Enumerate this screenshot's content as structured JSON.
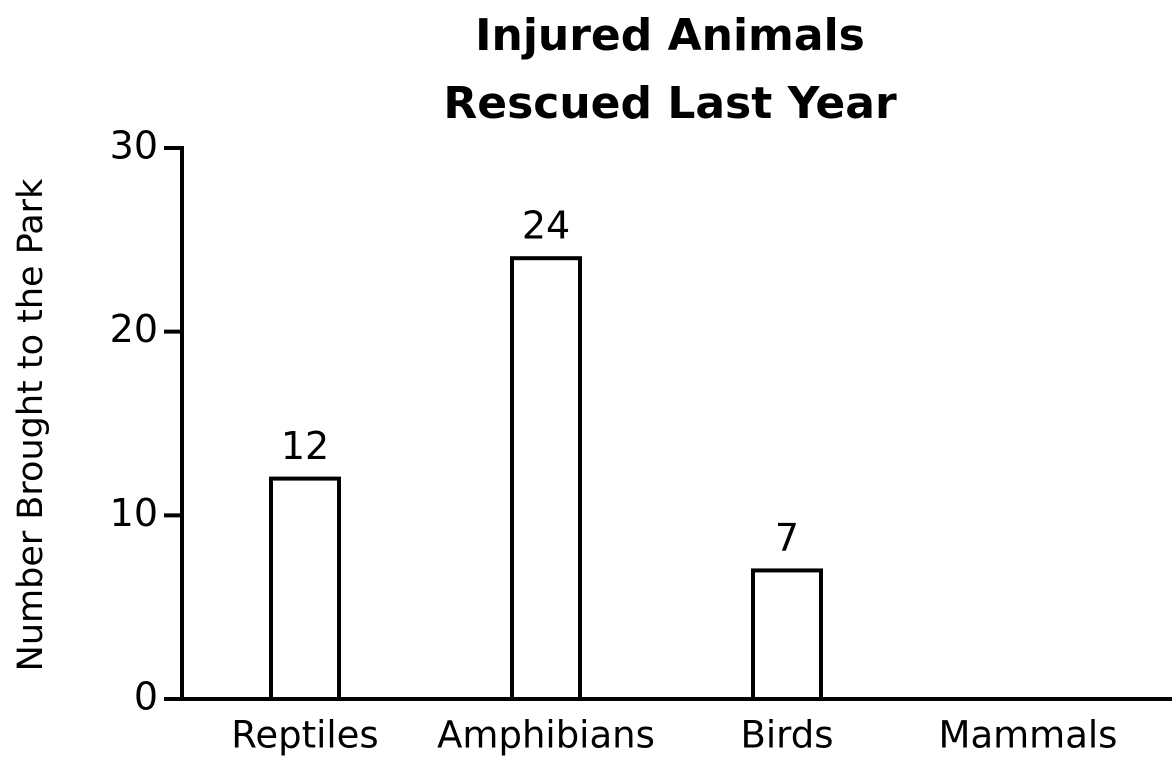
{
  "chart_data": {
    "type": "bar",
    "title": [
      "Injured Animals",
      "Rescued Last Year"
    ],
    "y_label": "Number Brought to the Park",
    "categories": [
      "Reptiles",
      "Amphibians",
      "Birds",
      "Mammals"
    ],
    "values": [
      12,
      24,
      7,
      null
    ],
    "color": "#ffffff",
    "ylim": [
      0,
      30
    ],
    "yticks": [
      0,
      10,
      20,
      30
    ],
    "grid": false
  }
}
